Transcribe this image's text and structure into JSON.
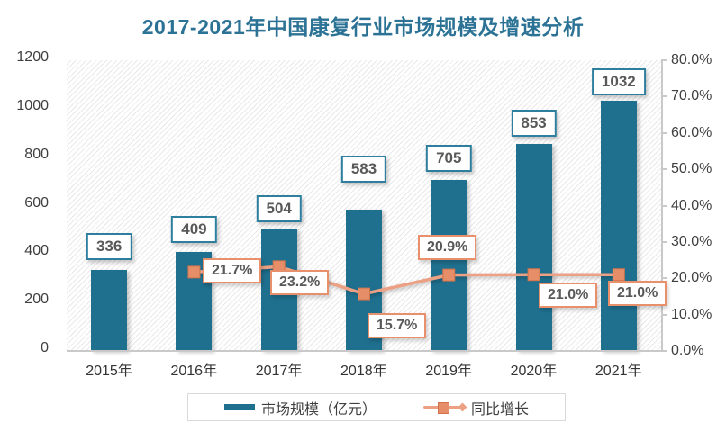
{
  "title": "2017-2021年中国康复行业市场规模及增速分析",
  "chart_data": {
    "type": "bar",
    "subtype": "bar-line-combo",
    "categories": [
      "2015年",
      "2016年",
      "2017年",
      "2018年",
      "2019年",
      "2020年",
      "2021年"
    ],
    "series": [
      {
        "name": "市场规模（亿元）",
        "type": "bar",
        "axis": "left",
        "values": [
          336,
          409,
          504,
          583,
          705,
          853,
          1032
        ],
        "data_labels": [
          "336",
          "409",
          "504",
          "583",
          "705",
          "853",
          "1032"
        ]
      },
      {
        "name": "同比增长",
        "type": "line",
        "axis": "right",
        "values": [
          null,
          21.7,
          23.2,
          15.7,
          20.9,
          21.0,
          21.0
        ],
        "data_labels": [
          null,
          "21.7%",
          "23.2%",
          "15.7%",
          "20.9%",
          "21.0%",
          "21.0%"
        ]
      }
    ],
    "left_axis": {
      "min": 0,
      "max": 1200,
      "step": 200,
      "ticks": [
        "0",
        "200",
        "400",
        "600",
        "800",
        "1000",
        "1200"
      ]
    },
    "right_axis": {
      "min": 0,
      "max": 80,
      "step": 10,
      "ticks": [
        "0.0%",
        "10.0%",
        "20.0%",
        "30.0%",
        "40.0%",
        "50.0%",
        "60.0%",
        "70.0%",
        "80.0%"
      ]
    },
    "legend": {
      "position": "bottom",
      "items": [
        {
          "label": "市场规模（亿元）",
          "swatch": "bar"
        },
        {
          "label": "同比增长",
          "swatch": "line-square-marker"
        }
      ]
    },
    "grid": "off",
    "plot_background": "diagonal-hatch"
  },
  "colors": {
    "title": "#2b7295",
    "bar": "#1f708f",
    "bar_label_border": "#2e7e9e",
    "line": "#eca184",
    "marker_fill": "#e58e68",
    "marker_stroke": "#d0734c",
    "line_label_border": "#e88f6b",
    "label_text": "#595959",
    "axis_text": "#3f3f3f",
    "x_axis_text": "#333333",
    "axis_line": "#c9c9c9",
    "legend_border": "#d9d9d9"
  }
}
